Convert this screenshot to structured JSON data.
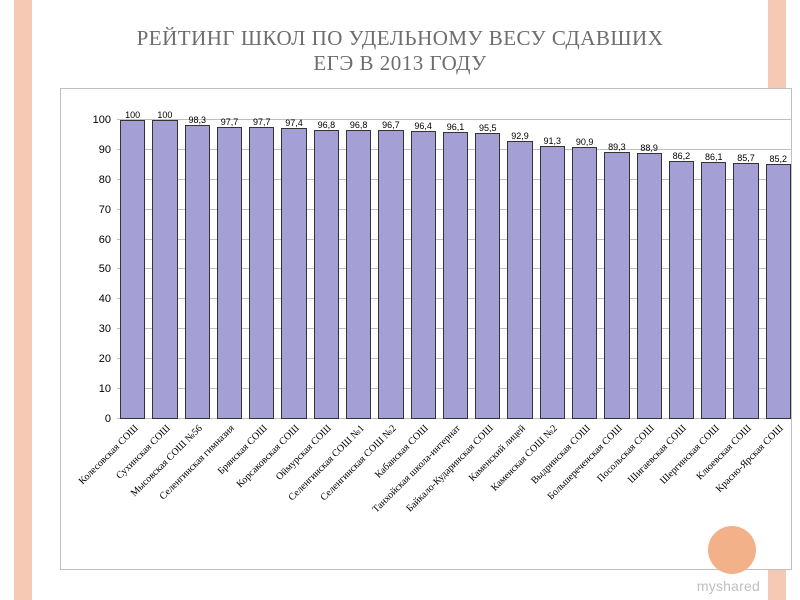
{
  "title": "РЕЙТИНГ ШКОЛ ПО УДЕЛЬНОМУ ВЕСУ СДАВШИХ\nЕГЭ В 2013 ГОДУ",
  "watermark": "myshared",
  "stripe_color": "#f5c9b4",
  "circle_color": "#f2b188",
  "chart": {
    "type": "bar",
    "ylim": [
      0,
      105
    ],
    "ytick_step": 10,
    "ytick_max": 100,
    "bar_color": "#a4a0d6",
    "bar_border": "#333333",
    "grid_color": "#bfbfbf",
    "axis_font_size": 11,
    "value_font_size": 9,
    "xlabel_font_size": 10,
    "xlabel_rotation_deg": -45,
    "background": "#ffffff",
    "categories": [
      "Колесовская СОШ",
      "Сухинская СОШ",
      "Мысовская СОШ №56",
      "Селенгинская гимназия",
      "Брянская СОШ",
      "Корсаковская СОШ",
      "Оймурская СОШ",
      "Селенгинская СОШ №1",
      "Селенгинская СОШ №2",
      "Кабанская СОШ",
      "Танхойская школа-интернат",
      "Байкало-Кударинская СОШ",
      "Каменский лицей",
      "Каменская СОШ №2",
      "Выдринская СОШ",
      "Большереченская СОШ",
      "Посольская СОШ",
      "Шигаевская СОШ",
      "Шергинская СОШ",
      "Клюевская СОШ",
      "Красно-Ярская СОШ"
    ],
    "values": [
      100,
      100,
      98.3,
      97.7,
      97.7,
      97.4,
      96.8,
      96.8,
      96.7,
      96.4,
      96.1,
      95.5,
      92.9,
      91.3,
      90.9,
      89.3,
      88.9,
      86.2,
      86.1,
      85.7,
      85.2
    ],
    "value_labels": [
      "100",
      "100",
      "98,3",
      "97,7",
      "97,7",
      "97,4",
      "96,8",
      "96,8",
      "96,7",
      "96,4",
      "96,1",
      "95,5",
      "92,9",
      "91,3",
      "90,9",
      "89,3",
      "88,9",
      "86,2",
      "86,1",
      "85,7",
      "85,2"
    ]
  }
}
